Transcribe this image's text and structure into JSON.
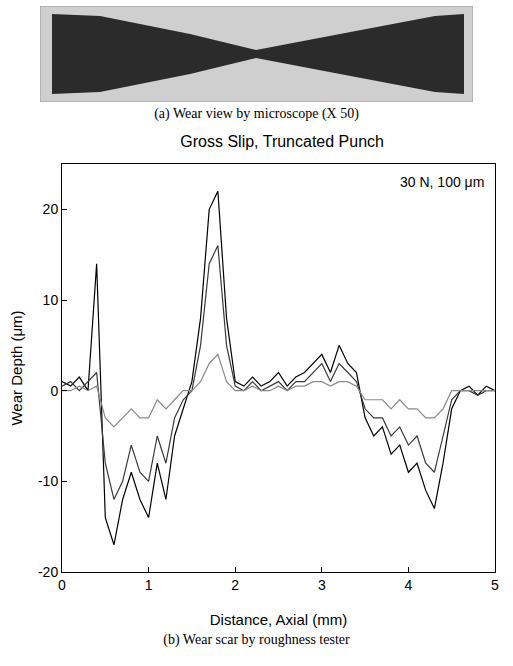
{
  "panel_a": {
    "caption": "(a) Wear view by microscope (X 50)"
  },
  "chart_data": {
    "type": "line",
    "title": "Gross Slip, Truncated Punch",
    "x_label": "Distance, Axial (mm)",
    "y_label": "Wear Depth (μm)",
    "annotations": [
      "30 N, 100 μm"
    ],
    "caption": "(b) Wear scar by roughness tester",
    "xlim": [
      0,
      5
    ],
    "xticks": [
      0,
      1,
      2,
      3,
      4,
      5
    ],
    "ylim": [
      -20,
      25
    ],
    "yticks": [
      -20,
      -10,
      0,
      10,
      20
    ],
    "grid": false,
    "x": [
      0,
      0.1,
      0.2,
      0.3,
      0.4,
      0.5,
      0.6,
      0.7,
      0.8,
      0.9,
      1.0,
      1.1,
      1.2,
      1.3,
      1.4,
      1.5,
      1.6,
      1.7,
      1.8,
      1.9,
      2.0,
      2.1,
      2.2,
      2.3,
      2.4,
      2.5,
      2.6,
      2.7,
      2.8,
      2.9,
      3.0,
      3.1,
      3.2,
      3.3,
      3.4,
      3.5,
      3.6,
      3.7,
      3.8,
      3.9,
      4.0,
      4.1,
      4.2,
      4.3,
      4.4,
      4.5,
      4.6,
      4.7,
      4.8,
      4.9,
      5.0
    ],
    "series": [
      {
        "color": "#000000",
        "values": [
          1,
          0.5,
          1.5,
          0,
          14,
          -14,
          -17,
          -12,
          -9,
          -12,
          -14,
          -8,
          -12,
          -5,
          -2,
          1,
          8,
          20,
          22,
          8,
          1,
          0.5,
          1.5,
          0.5,
          1,
          2,
          0.5,
          1.5,
          2,
          3,
          4,
          2,
          5,
          3,
          2,
          -3,
          -5,
          -4,
          -7,
          -6,
          -9,
          -8,
          -11,
          -13,
          -8,
          -2,
          0,
          0.5,
          -0.5,
          0.5,
          0
        ]
      },
      {
        "color": "#3a3a3a",
        "values": [
          0.5,
          1,
          0,
          1,
          2,
          -8,
          -12,
          -10,
          -6,
          -9,
          -10,
          -5,
          -8,
          -3,
          -1,
          0,
          5,
          14,
          16,
          5,
          0.5,
          0,
          1,
          0,
          0.5,
          1,
          0,
          1,
          1,
          2,
          3,
          1,
          3,
          2,
          1,
          -2,
          -3,
          -3,
          -5,
          -4,
          -6,
          -5,
          -8,
          -9,
          -5,
          -1,
          0,
          0,
          -0.5,
          0,
          0
        ]
      },
      {
        "color": "#8a8a8a",
        "values": [
          0,
          0,
          0.5,
          0,
          0.5,
          -3,
          -4,
          -3,
          -2,
          -3,
          -3,
          -1,
          -2,
          -1,
          0,
          0,
          1,
          3,
          4,
          1,
          0,
          0,
          0.5,
          0,
          0,
          0.5,
          0,
          0.5,
          0.5,
          1,
          1,
          0.5,
          1,
          1,
          0.5,
          -1,
          -1,
          -1,
          -2,
          -1,
          -2,
          -2,
          -3,
          -3,
          -2,
          0,
          0,
          0,
          0,
          0,
          0
        ]
      }
    ]
  }
}
